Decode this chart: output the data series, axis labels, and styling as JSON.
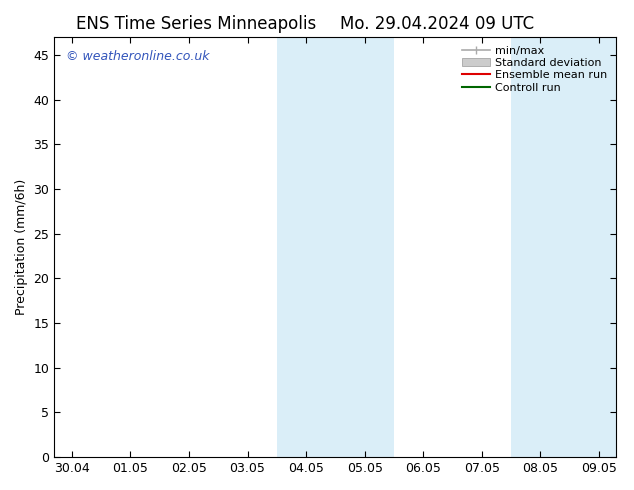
{
  "title_left": "ENS Time Series Minneapolis",
  "title_right": "Mo. 29.04.2024 09 UTC",
  "ylabel": "Precipitation (mm/6h)",
  "ylim": [
    0,
    47
  ],
  "yticks": [
    0,
    5,
    10,
    15,
    20,
    25,
    30,
    35,
    40,
    45
  ],
  "x_labels": [
    "30.04",
    "01.05",
    "02.05",
    "03.05",
    "04.05",
    "05.05",
    "06.05",
    "07.05",
    "08.05",
    "09.05"
  ],
  "x_positions": [
    0,
    1,
    2,
    3,
    4,
    5,
    6,
    7,
    8,
    9
  ],
  "xlim": [
    -0.3,
    9.3
  ],
  "shade_bands": [
    {
      "x_start": 3.5,
      "x_end": 5.5
    },
    {
      "x_start": 7.5,
      "x_end": 9.3
    }
  ],
  "shade_color": "#daeef8",
  "watermark": "© weatheronline.co.uk",
  "watermark_color": "#3355bb",
  "legend_items": [
    {
      "label": "min/max",
      "color": "#aaaaaa",
      "lw": 1.2
    },
    {
      "label": "Standard deviation",
      "color": "#cccccc",
      "lw": 8
    },
    {
      "label": "Ensemble mean run",
      "color": "#dd0000",
      "lw": 1.5
    },
    {
      "label": "Controll run",
      "color": "#006600",
      "lw": 1.5
    }
  ],
  "bg_color": "#ffffff",
  "plot_bg_color": "#ffffff",
  "border_color": "#000000",
  "tick_color": "#000000",
  "title_fontsize": 12,
  "label_fontsize": 9,
  "tick_fontsize": 9,
  "watermark_fontsize": 9,
  "legend_fontsize": 8
}
